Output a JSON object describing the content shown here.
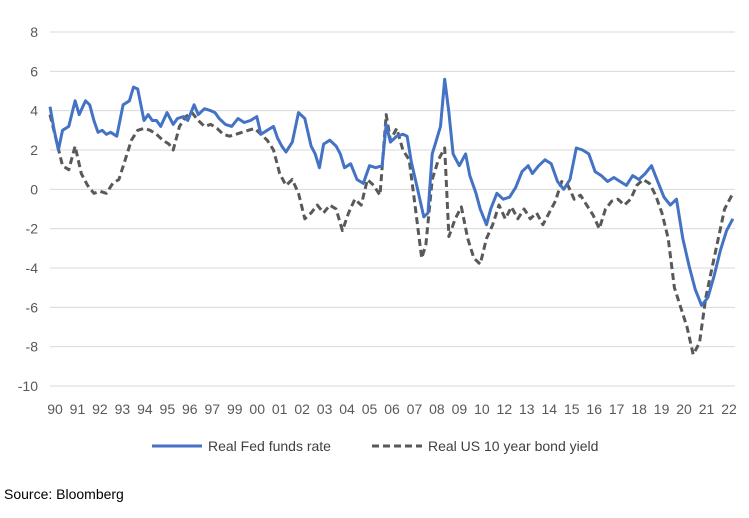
{
  "chart_data": {
    "type": "line",
    "title": "",
    "xlabel": "",
    "ylabel": "",
    "ylim": [
      -10,
      8
    ],
    "xlim": [
      1990,
      2022.8
    ],
    "y_ticks": [
      8,
      6,
      4,
      2,
      0,
      -2,
      -4,
      -6,
      -8,
      -10
    ],
    "x_tick_labels": [
      "90",
      "91",
      "92",
      "93",
      "94",
      "95",
      "96",
      "97",
      "99",
      "00",
      "01",
      "02",
      "03",
      "04",
      "05",
      "06",
      "07",
      "08",
      "09",
      "10",
      "12",
      "13",
      "14",
      "15",
      "16",
      "17",
      "18",
      "19",
      "20",
      "21",
      "22"
    ],
    "gridlines": "horizontal",
    "legend_position": "bottom",
    "series": [
      {
        "name": "Real Fed funds rate",
        "color": "#4472C4",
        "style": "solid",
        "x": [
          1990.0,
          1990.2,
          1990.4,
          1990.6,
          1990.9,
          1991.2,
          1991.4,
          1991.7,
          1991.9,
          1992.1,
          1992.3,
          1992.5,
          1992.7,
          1992.9,
          1993.2,
          1993.5,
          1993.8,
          1994.0,
          1994.2,
          1994.5,
          1994.7,
          1994.9,
          1995.1,
          1995.3,
          1995.6,
          1995.9,
          1996.1,
          1996.4,
          1996.6,
          1996.9,
          1997.1,
          1997.4,
          1997.7,
          1997.9,
          1998.1,
          1998.4,
          1998.7,
          1999.0,
          1999.3,
          1999.6,
          1999.9,
          2000.1,
          2000.4,
          2000.7,
          2000.9,
          2001.1,
          2001.3,
          2001.6,
          2001.9,
          2002.2,
          2002.5,
          2002.7,
          2002.9,
          2003.1,
          2003.4,
          2003.7,
          2003.9,
          2004.1,
          2004.4,
          2004.7,
          2005.0,
          2005.3,
          2005.6,
          2005.9,
          2006.1,
          2006.3,
          2006.6,
          2006.9,
          2007.1,
          2007.3,
          2007.6,
          2007.9,
          2008.1,
          2008.3,
          2008.5,
          2008.7,
          2008.9,
          2009.1,
          2009.3,
          2009.6,
          2009.9,
          2010.1,
          2010.4,
          2010.6,
          2010.9,
          2011.1,
          2011.4,
          2011.7,
          2012.0,
          2012.3,
          2012.6,
          2012.9,
          2013.1,
          2013.4,
          2013.7,
          2014.0,
          2014.3,
          2014.6,
          2014.9,
          2015.2,
          2015.5,
          2015.8,
          2016.1,
          2016.4,
          2016.7,
          2017.0,
          2017.3,
          2017.6,
          2017.9,
          2018.2,
          2018.5,
          2018.8,
          2019.1,
          2019.4,
          2019.7,
          2020.0,
          2020.3,
          2020.6,
          2020.9,
          2021.2,
          2021.5,
          2021.8,
          2022.1,
          2022.4,
          2022.7
        ],
        "y": [
          4.2,
          3.0,
          2.0,
          3.0,
          3.2,
          4.5,
          3.8,
          4.5,
          4.3,
          3.5,
          2.9,
          3.0,
          2.8,
          2.9,
          2.7,
          4.3,
          4.5,
          5.2,
          5.1,
          3.5,
          3.8,
          3.5,
          3.5,
          3.2,
          3.9,
          3.3,
          3.6,
          3.7,
          3.5,
          4.3,
          3.8,
          4.1,
          4.0,
          3.9,
          3.6,
          3.3,
          3.2,
          3.6,
          3.4,
          3.5,
          3.7,
          2.8,
          3.0,
          3.2,
          2.6,
          2.2,
          1.9,
          2.4,
          3.9,
          3.6,
          2.2,
          1.8,
          1.1,
          2.3,
          2.5,
          2.2,
          1.8,
          1.1,
          1.3,
          0.5,
          0.3,
          1.2,
          1.1,
          1.2,
          3.3,
          2.4,
          2.7,
          2.8,
          2.7,
          1.4,
          0.0,
          -1.4,
          -1.2,
          1.8,
          2.5,
          3.2,
          5.6,
          3.9,
          1.8,
          1.2,
          1.8,
          0.7,
          -0.2,
          -1.0,
          -1.8,
          -1.0,
          -0.2,
          -0.5,
          -0.4,
          0.1,
          0.9,
          1.2,
          0.8,
          1.2,
          1.5,
          1.3,
          0.4,
          0.0,
          0.5,
          2.1,
          2.0,
          1.8,
          0.9,
          0.7,
          0.4,
          0.6,
          0.4,
          0.2,
          0.7,
          0.5,
          0.8,
          1.2,
          0.4,
          -0.4,
          -0.8,
          -0.5,
          -2.5,
          -3.9,
          -5.1,
          -5.9,
          -5.5,
          -4.4,
          -3.1,
          -2.1,
          -1.5
        ],
        "values_approximate": true
      },
      {
        "name": "Real US 10 year bond yield",
        "color": "#595959",
        "style": "dashed",
        "x": [
          1990.0,
          1990.3,
          1990.6,
          1990.9,
          1991.2,
          1991.5,
          1991.8,
          1992.1,
          1992.4,
          1992.7,
          1993.0,
          1993.3,
          1993.6,
          1993.9,
          1994.2,
          1994.5,
          1994.8,
          1995.1,
          1995.4,
          1995.7,
          1995.9,
          1996.2,
          1996.5,
          1996.8,
          1997.1,
          1997.4,
          1997.7,
          1998.0,
          1998.3,
          1998.6,
          1998.9,
          1999.2,
          1999.5,
          1999.8,
          2000.1,
          2000.4,
          2000.7,
          2001.0,
          2001.3,
          2001.6,
          2001.9,
          2002.2,
          2002.5,
          2002.8,
          2003.1,
          2003.4,
          2003.7,
          2004.0,
          2004.3,
          2004.6,
          2004.9,
          2005.2,
          2005.5,
          2005.8,
          2006.1,
          2006.3,
          2006.6,
          2006.9,
          2007.2,
          2007.5,
          2007.8,
          2008.0,
          2008.3,
          2008.6,
          2008.9,
          2009.1,
          2009.4,
          2009.7,
          2010.0,
          2010.3,
          2010.6,
          2010.9,
          2011.2,
          2011.5,
          2011.8,
          2012.1,
          2012.4,
          2012.7,
          2013.0,
          2013.3,
          2013.6,
          2013.9,
          2014.2,
          2014.5,
          2014.8,
          2015.1,
          2015.4,
          2015.7,
          2016.0,
          2016.3,
          2016.6,
          2016.9,
          2017.2,
          2017.5,
          2017.8,
          2018.1,
          2018.4,
          2018.7,
          2019.0,
          2019.3,
          2019.6,
          2019.9,
          2020.2,
          2020.5,
          2020.8,
          2021.1,
          2021.4,
          2021.7,
          2022.0,
          2022.3,
          2022.7
        ],
        "y": [
          3.8,
          2.5,
          1.2,
          1.0,
          2.2,
          0.8,
          0.2,
          -0.2,
          -0.1,
          -0.2,
          0.3,
          0.5,
          1.5,
          2.5,
          3.0,
          3.1,
          3.0,
          2.8,
          2.5,
          2.3,
          2.0,
          3.2,
          3.7,
          3.9,
          3.5,
          3.2,
          3.3,
          3.1,
          2.8,
          2.7,
          2.8,
          2.9,
          3.0,
          3.1,
          2.8,
          2.5,
          2.0,
          0.8,
          0.2,
          0.5,
          -0.2,
          -1.5,
          -1.2,
          -0.8,
          -1.2,
          -0.8,
          -1.0,
          -2.1,
          -1.2,
          -0.5,
          -0.8,
          0.5,
          0.2,
          -0.3,
          3.8,
          2.5,
          3.1,
          2.0,
          1.5,
          -1.0,
          -3.5,
          -2.8,
          0.5,
          1.5,
          2.1,
          -2.4,
          -1.5,
          -0.9,
          -2.5,
          -3.5,
          -3.8,
          -2.5,
          -1.8,
          -0.8,
          -1.5,
          -0.9,
          -1.5,
          -1.0,
          -1.5,
          -1.2,
          -1.8,
          -1.2,
          -0.6,
          0.4,
          0.2,
          -0.5,
          -0.3,
          -0.8,
          -1.3,
          -2.0,
          -1.0,
          -0.6,
          -0.5,
          -0.8,
          -0.5,
          0.2,
          0.5,
          0.3,
          -0.3,
          -1.2,
          -2.5,
          -5.0,
          -6.0,
          -7.0,
          -8.4,
          -7.8,
          -5.5,
          -4.0,
          -2.5,
          -1.0,
          -0.2
        ],
        "values_approximate": true
      }
    ]
  },
  "source_text": "Source: Bloomberg"
}
